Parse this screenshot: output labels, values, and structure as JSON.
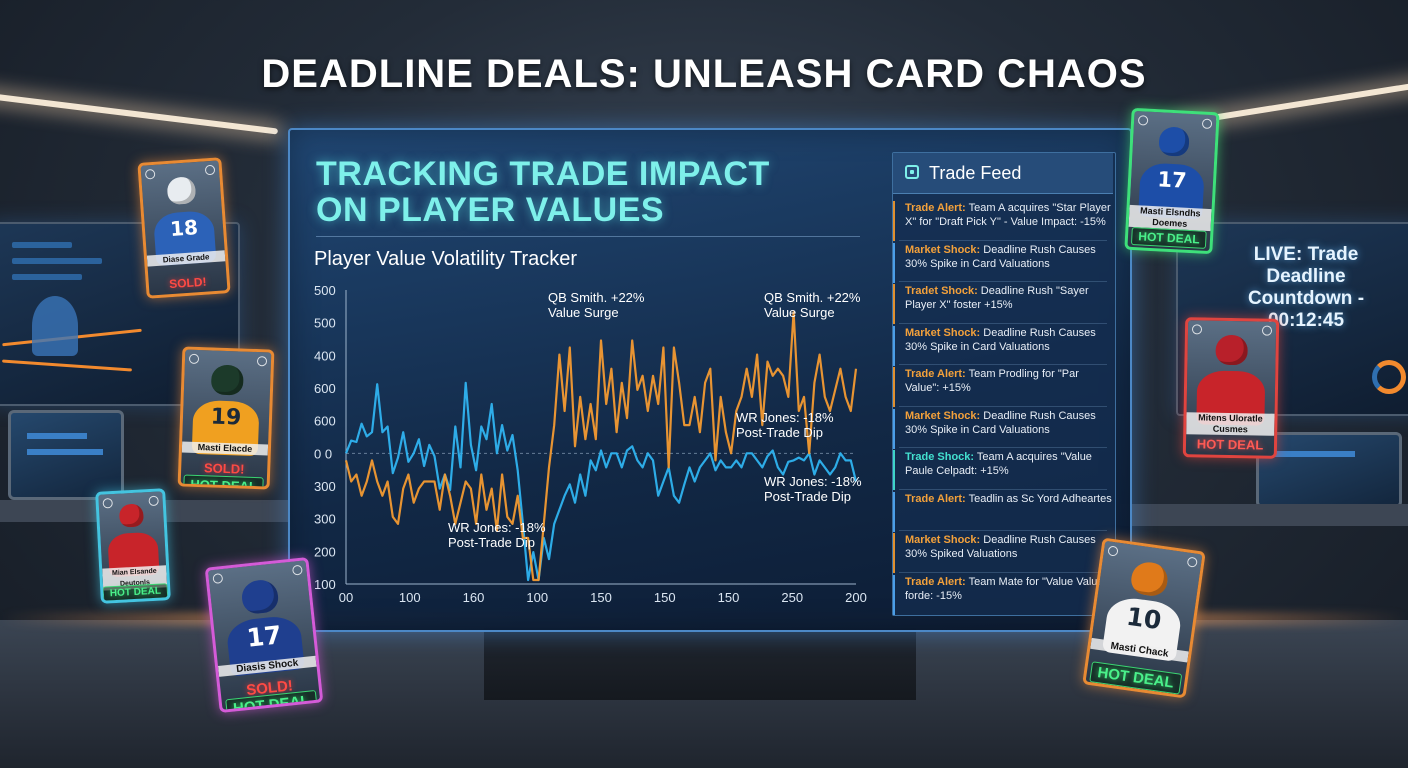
{
  "page_title": "DEADLINE DEALS: UNLEASH CARD CHAOS",
  "panel": {
    "title_line1": "TRACKING TRADE IMPACT",
    "title_line2": "ON PLAYER VALUES",
    "chart_title": "Player Value Volatility Tracker"
  },
  "chart_data": {
    "type": "line",
    "y_ticks": [
      "500",
      "500",
      "400",
      "600",
      "600",
      "0 0",
      "300",
      "300",
      "200",
      "100"
    ],
    "x_ticks": [
      "00",
      "100",
      "160",
      "100",
      "150",
      "150",
      "150",
      "250",
      "200"
    ],
    "annotations": [
      {
        "line1": "QB Smith. +22%",
        "line2": "Value Surge"
      },
      {
        "line1": "QB Smith. +22%",
        "line2": "Value Surge"
      },
      {
        "line1": "WR Jones: -18%",
        "line2": "Post-Trade Dip"
      },
      {
        "line1": "WR Jones: -18%",
        "line2": "Post-Trade Dip"
      },
      {
        "line1": "WR Jones: -18%",
        "line2": "Post-Trade Dip"
      }
    ],
    "series": [
      {
        "color": "#2fb3f0",
        "values": [
          0,
          18,
          16,
          42,
          24,
          30,
          98,
          30,
          38,
          -28,
          -6,
          30,
          -12,
          0,
          20,
          -18,
          12,
          -4,
          -50,
          -30,
          -52,
          38,
          -20,
          100,
          12,
          -24,
          38,
          20,
          70,
          0,
          40,
          4,
          26,
          -24,
          -100,
          -190,
          -140,
          -180,
          -120,
          -150,
          -100,
          -80,
          -60,
          -44,
          -70,
          -30,
          -60,
          -10,
          -24,
          4,
          -20,
          0,
          0,
          -20,
          4,
          10,
          -10,
          -20,
          0,
          -10,
          -60,
          -40,
          -20,
          -60,
          -70,
          -44,
          -20,
          -40,
          -20,
          -10,
          0,
          -24,
          -10,
          -20,
          -20,
          -10,
          -20,
          0,
          0,
          -10,
          -20,
          -4,
          4,
          -20,
          -30,
          -12,
          -10,
          -6,
          -10,
          0,
          -30,
          -10,
          -20,
          -30,
          -20,
          0,
          -10,
          -10,
          -40
        ]
      },
      {
        "color": "#f39a32",
        "values": [
          -10,
          -40,
          -30,
          -60,
          -40,
          -10,
          -40,
          -60,
          -40,
          -90,
          -100,
          -50,
          -30,
          -70,
          -50,
          -40,
          -40,
          -40,
          -80,
          -30,
          -60,
          -100,
          -70,
          -40,
          -50,
          -100,
          -30,
          -80,
          -50,
          -110,
          -30,
          -90,
          -100,
          -60,
          -120,
          -120,
          -200,
          -200,
          -100,
          -20,
          40,
          140,
          60,
          150,
          10,
          80,
          20,
          70,
          20,
          160,
          70,
          120,
          30,
          100,
          50,
          160,
          90,
          110,
          60,
          110,
          70,
          150,
          -20,
          150,
          100,
          40,
          40,
          80,
          30,
          100,
          120,
          -10,
          80,
          30,
          0,
          60,
          80,
          120,
          80,
          140,
          40,
          130,
          110,
          120,
          110,
          80,
          200,
          60,
          80,
          0,
          100,
          140,
          80,
          60,
          90,
          120,
          80,
          60,
          120
        ]
      }
    ]
  },
  "feed": {
    "title": "Trade Feed",
    "items": [
      {
        "tag": "Trade Alert:",
        "tag_color": "orange",
        "text": "Team A acquires \"Star Player X\" for \"Draft Pick Y\" - Value Impact: -15%"
      },
      {
        "tag": "Market Shock:",
        "tag_color": "orange",
        "text": "Deadline Rush Causes 30% Spike in Card Valuations"
      },
      {
        "tag": "Tradet Shock:",
        "tag_color": "orange",
        "text": "Deadline Rush \"Sayer Player X\" foster +15%"
      },
      {
        "tag": "Market Shock:",
        "tag_color": "orange",
        "text": "Deadline Rush Causes 30% Spike in Card Valuations"
      },
      {
        "tag": "Trade Alert:",
        "tag_color": "orange",
        "text": "Team Prodling for \"Par Value\": +15%"
      },
      {
        "tag": "Market Shock:",
        "tag_color": "orange",
        "text": "Deadline Rush Causes 30% Spike in Card Valuations"
      },
      {
        "tag": "Trade Shock:",
        "tag_color": "teal",
        "text": "Team A acquires \"Value Paule Celpadt: +15%"
      },
      {
        "tag": "Trade Alert:",
        "tag_color": "orange",
        "text": "Teadlin as Sc Yord Adheartes"
      },
      {
        "tag": "Market Shock:",
        "tag_color": "orange",
        "text": "Deadline Rush Causes 30% Spiked Valuations"
      },
      {
        "tag": "Trade Alert:",
        "tag_color": "orange",
        "text": "Team Mate for \"Value Value forde: -15%"
      }
    ]
  },
  "countdown": {
    "line1": "LIVE: Trade Deadline",
    "line2": "Countdown - 00:12:45"
  },
  "cards": [
    {
      "name": "Diase Grade",
      "number": "18",
      "jersey_color": "#2c62b8",
      "helmet_color": "#e8ecf0",
      "badge": "SOLD!",
      "badge2": ""
    },
    {
      "name": "Masti Elacde",
      "number": "19",
      "jersey_color": "#f0a020",
      "helmet_color": "#1c3a2a",
      "badge": "SOLD!",
      "badge2": "HOT DEAL"
    },
    {
      "name": "Mian Elsande Deutonls",
      "number": "",
      "jersey_color": "#c8242a",
      "helmet_color": "#c8242a",
      "badge": "HOT DEAL",
      "badge2": ""
    },
    {
      "name": "Diasis Shock",
      "number": "17",
      "jersey_color": "#1f3f8f",
      "helmet_color": "#1f3f8f",
      "badge": "SOLD!",
      "badge2": "HOT DEAL"
    },
    {
      "name": "Masti Elsndhs Doemes",
      "number": "17",
      "jersey_color": "#1d4ea8",
      "helmet_color": "#1d4ea8",
      "badge": "HOT DEAL",
      "badge2": ""
    },
    {
      "name": "Mitens Uloratle Cusmes",
      "number": "",
      "jersey_color": "#c8242a",
      "helmet_color": "#b8202a",
      "badge": "HOT DEAL",
      "badge2": ""
    },
    {
      "name": "Masti Chack",
      "number": "10",
      "jersey_color": "#f2f2f2",
      "helmet_color": "#e07a1a",
      "badge": "HOT DEAL",
      "badge2": ""
    }
  ]
}
